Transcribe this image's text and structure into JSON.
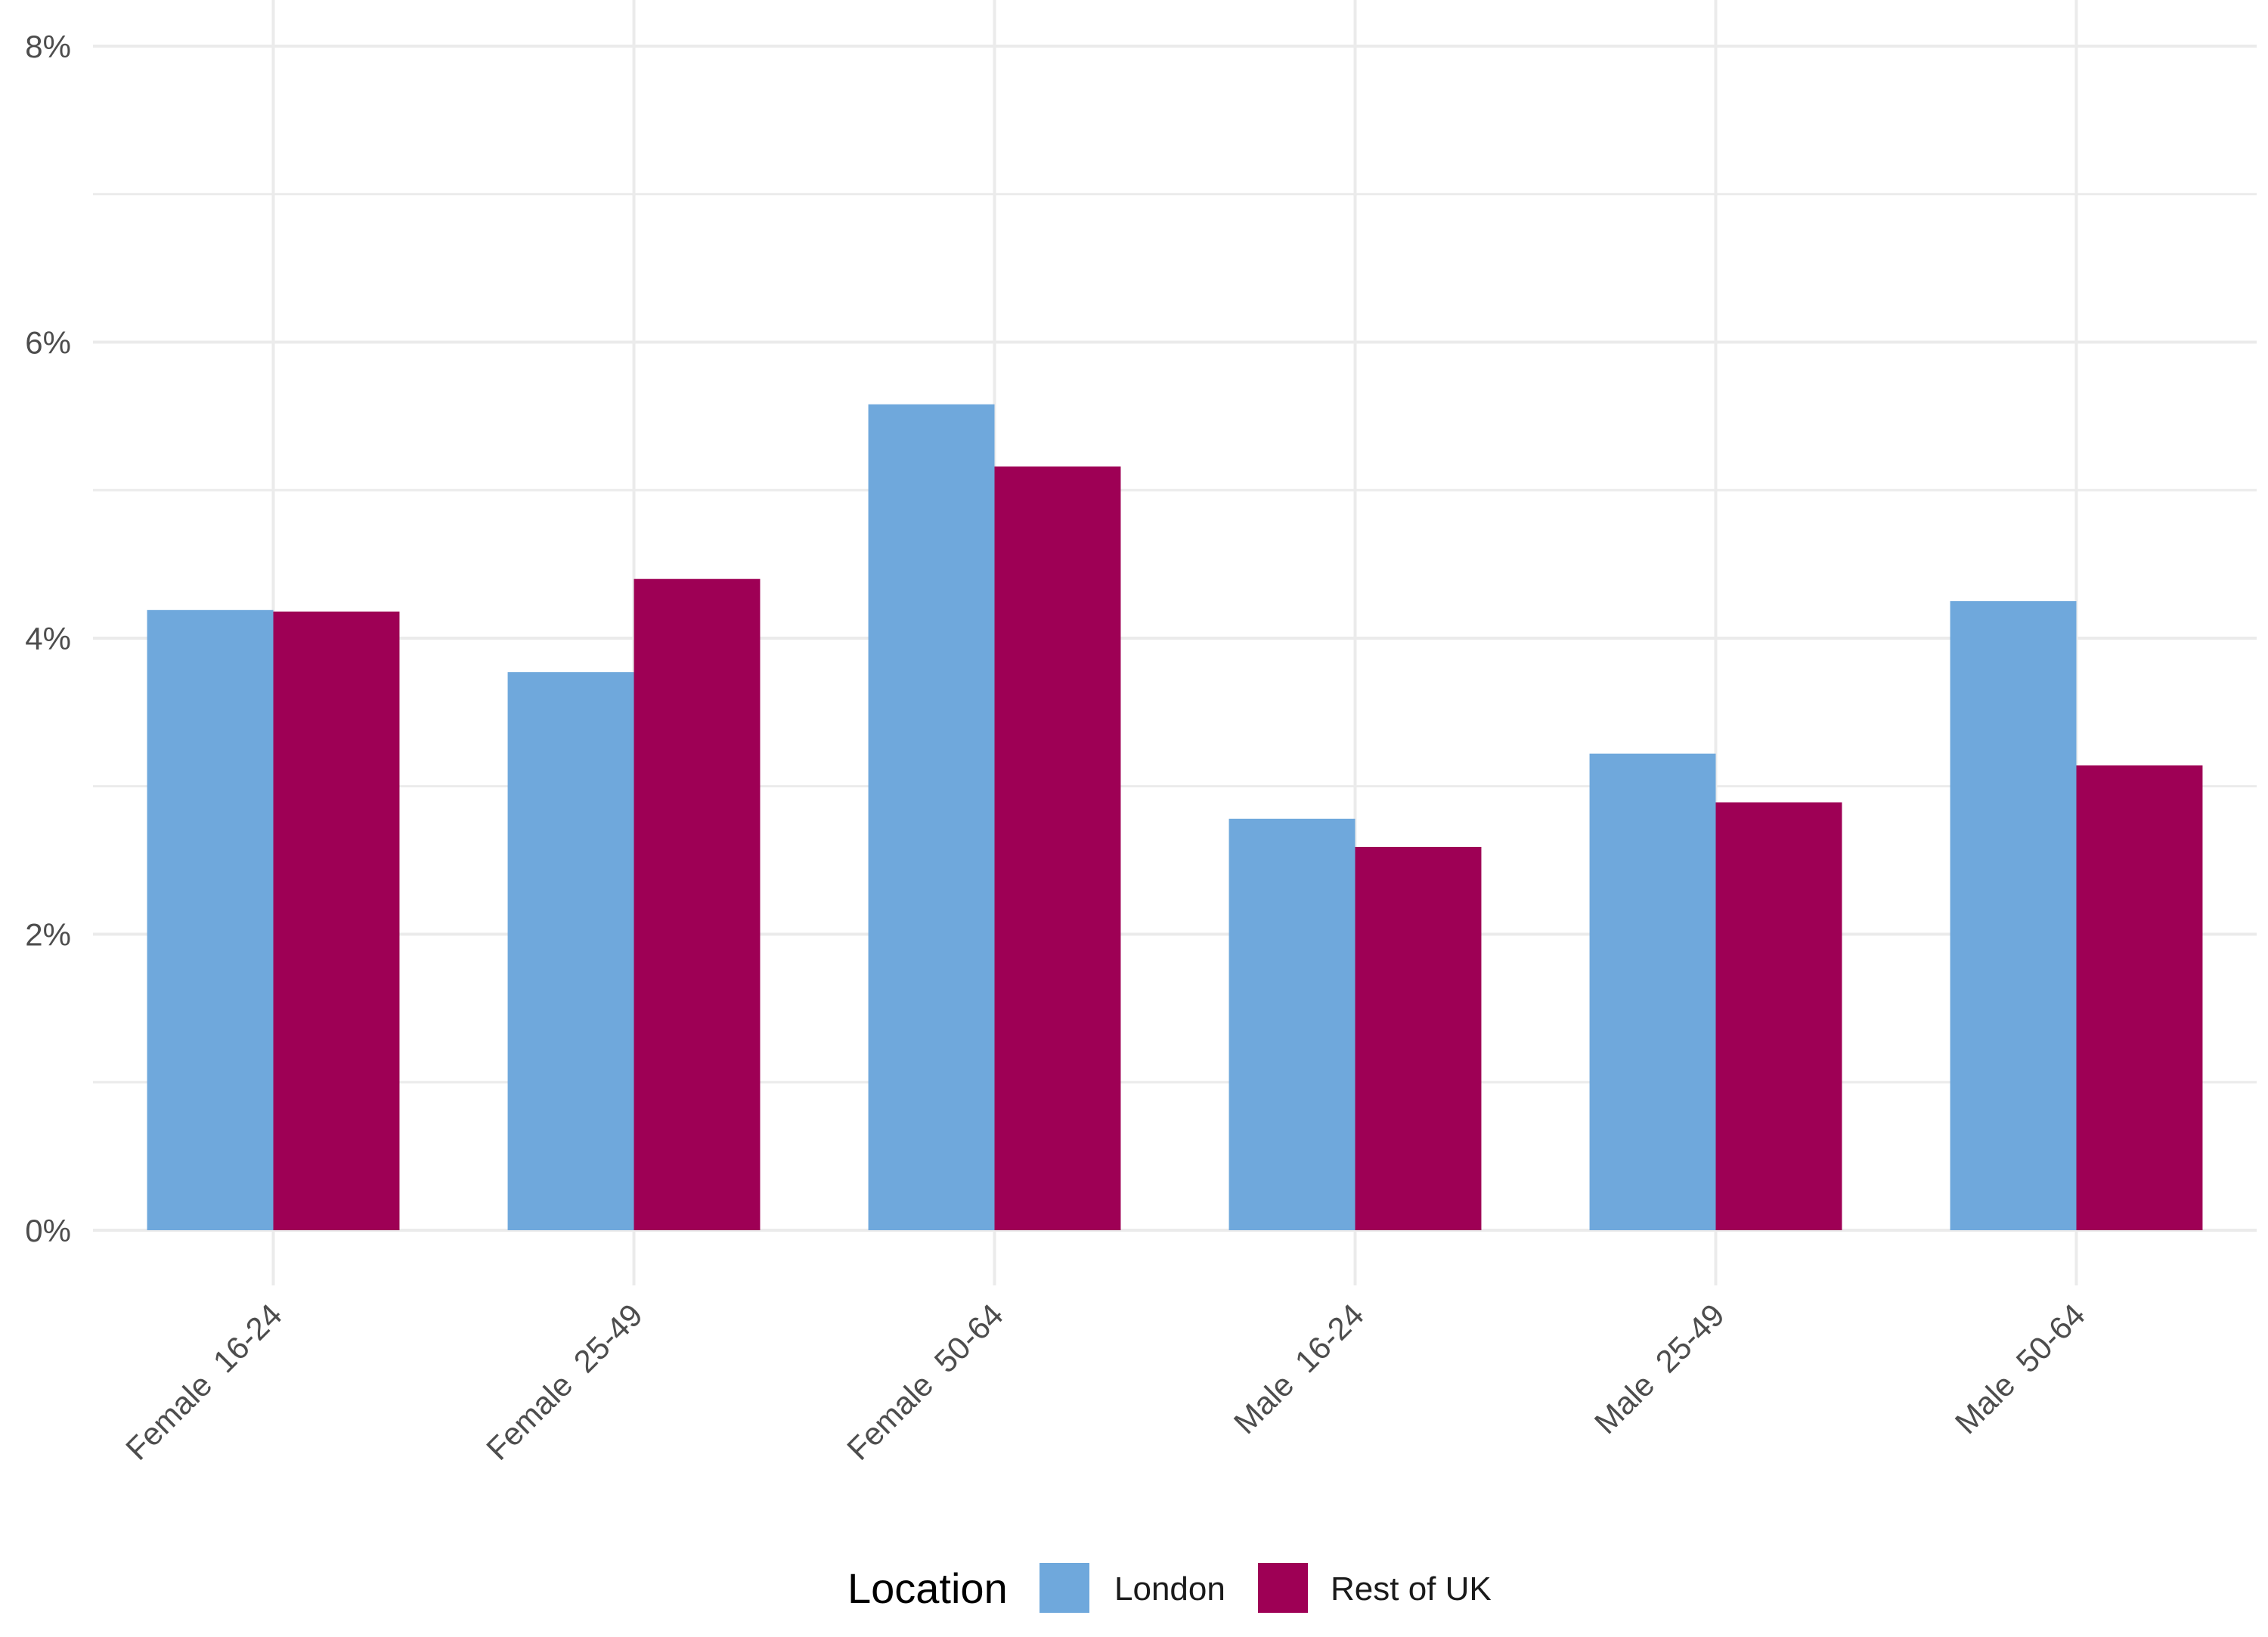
{
  "chart_data": {
    "type": "bar",
    "categories": [
      "Female  16-24",
      "Female  25-49",
      "Female  50-64",
      "Male  16-24",
      "Male  25-49",
      "Male  50-64"
    ],
    "series": [
      {
        "name": "London",
        "color": "#6FA8DC",
        "values": [
          4.19,
          3.77,
          5.58,
          2.78,
          3.22,
          4.25
        ]
      },
      {
        "name": "Rest of UK",
        "color": "#9E0055",
        "values": [
          4.18,
          4.4,
          5.16,
          2.59,
          2.89,
          3.14
        ]
      }
    ],
    "ylim": [
      0,
      8
    ],
    "yticks": [
      {
        "value": 0,
        "label": "0%"
      },
      {
        "value": 2,
        "label": "2%"
      },
      {
        "value": 4,
        "label": "4%"
      },
      {
        "value": 6,
        "label": "6%"
      },
      {
        "value": 8,
        "label": "8%"
      }
    ],
    "minor_grid": [
      1,
      3,
      5,
      7
    ],
    "grid": true,
    "title": "",
    "xlabel": "",
    "ylabel": "",
    "legend": {
      "title": "Location",
      "position": "bottom"
    }
  }
}
